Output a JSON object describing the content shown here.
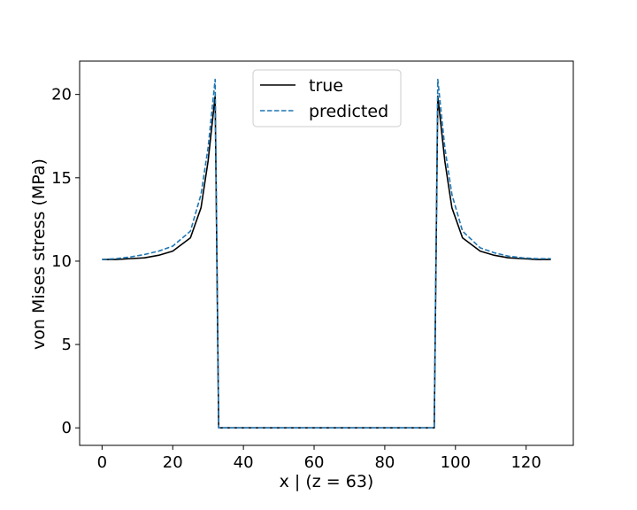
{
  "chart_data": {
    "type": "line",
    "title": "",
    "xlabel": "x | (z = 63)",
    "ylabel": "von Mises stress (MPa)",
    "xlim": [
      -6.35,
      133.35
    ],
    "ylim": [
      -1.05,
      22.0
    ],
    "xticks": [
      0,
      20,
      40,
      60,
      80,
      100,
      120
    ],
    "yticks": [
      0,
      5,
      10,
      15,
      20
    ],
    "grid": false,
    "legend_position": "top-center",
    "series": [
      {
        "name": "true",
        "color": "#000000",
        "style": "solid",
        "x": [
          0,
          4,
          8,
          12,
          16,
          20,
          25,
          28,
          30,
          32,
          33,
          40,
          50,
          60,
          70,
          80,
          90,
          94,
          95,
          97,
          99,
          102,
          107,
          111,
          115,
          119,
          123,
          127
        ],
        "y": [
          10.1,
          10.1,
          10.15,
          10.2,
          10.35,
          10.6,
          11.4,
          13.2,
          16.0,
          19.9,
          0,
          0,
          0,
          0,
          0,
          0,
          0,
          0,
          19.9,
          16.0,
          13.2,
          11.4,
          10.6,
          10.35,
          10.2,
          10.15,
          10.1,
          10.1
        ]
      },
      {
        "name": "predicted",
        "color": "#1f77b4",
        "style": "dashed",
        "x": [
          0,
          4,
          8,
          12,
          16,
          20,
          25,
          28,
          30,
          32,
          33,
          40,
          50,
          60,
          70,
          80,
          90,
          94,
          95,
          97,
          99,
          102,
          107,
          111,
          115,
          119,
          123,
          127
        ],
        "y": [
          10.1,
          10.15,
          10.25,
          10.4,
          10.6,
          10.9,
          11.8,
          14.0,
          16.8,
          20.9,
          0,
          0,
          0,
          0,
          0,
          0,
          0,
          0,
          20.9,
          16.8,
          14.0,
          11.8,
          10.8,
          10.5,
          10.3,
          10.2,
          10.15,
          10.15
        ]
      }
    ]
  }
}
